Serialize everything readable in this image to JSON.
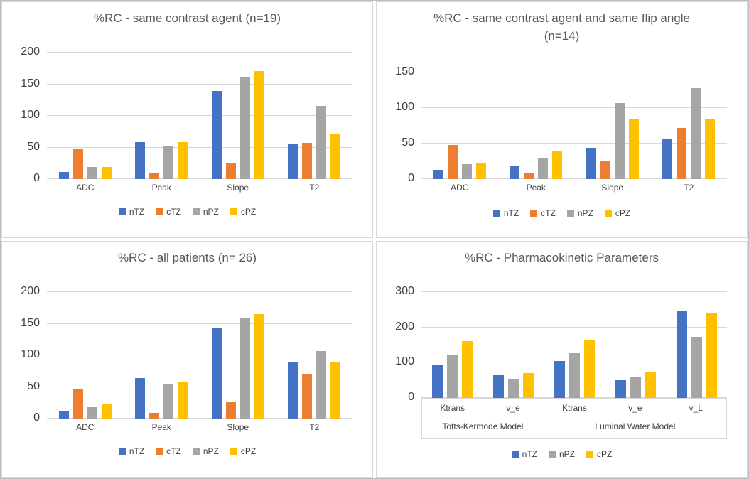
{
  "figure": {
    "background": "#ffffff",
    "outer_border_color": "#bdbdbd",
    "panel_border_color": "#d9d9d9"
  },
  "colors": {
    "nTZ": "#4472c4",
    "cTZ": "#ed7d31",
    "nPZ": "#a5a5a5",
    "cPZ": "#ffc000",
    "title_text": "#595959",
    "axis_text": "#404040",
    "gridline": "#d9d9d9"
  },
  "chart_data": [
    {
      "type": "bar",
      "title": "%RC - same contrast agent (n=19)",
      "title_lines": [
        "%RC - same contrast agent (n=19)"
      ],
      "categories": [
        "ADC",
        "Peak",
        "Slope",
        "T2"
      ],
      "series": [
        {
          "name": "nTZ",
          "color": "#4472c4",
          "values": [
            11,
            59,
            139,
            55
          ]
        },
        {
          "name": "cTZ",
          "color": "#ed7d31",
          "values": [
            48,
            9,
            26,
            57
          ]
        },
        {
          "name": "nPZ",
          "color": "#a5a5a5",
          "values": [
            19,
            53,
            161,
            116
          ]
        },
        {
          "name": "cPZ",
          "color": "#ffc000",
          "values": [
            19,
            58,
            171,
            72
          ]
        }
      ],
      "ylim": [
        0,
        200
      ],
      "yticks": [
        0,
        50,
        100,
        150,
        200
      ],
      "grid": true,
      "legend_position": "bottom",
      "legend": [
        "nTZ",
        "cTZ",
        "nPZ",
        "cPZ"
      ]
    },
    {
      "type": "bar",
      "title": "%RC  - same contrast agent and same flip angle (n=14)",
      "title_lines": [
        "%RC  - same contrast agent and same flip angle",
        "(n=14)"
      ],
      "categories": [
        "ADC",
        "Peak",
        "Slope",
        "T2"
      ],
      "series": [
        {
          "name": "nTZ",
          "color": "#4472c4",
          "values": [
            13,
            19,
            44,
            56
          ]
        },
        {
          "name": "cTZ",
          "color": "#ed7d31",
          "values": [
            48,
            9,
            26,
            72
          ]
        },
        {
          "name": "nPZ",
          "color": "#a5a5a5",
          "values": [
            21,
            29,
            107,
            128
          ]
        },
        {
          "name": "cPZ",
          "color": "#ffc000",
          "values": [
            23,
            39,
            85,
            84
          ]
        }
      ],
      "ylim": [
        0,
        150
      ],
      "yticks": [
        0,
        50,
        100,
        150
      ],
      "grid": true,
      "legend_position": "bottom",
      "legend": [
        "nTZ",
        "cTZ",
        "nPZ",
        "cPZ"
      ]
    },
    {
      "type": "bar",
      "title": "%RC - all patients (n= 26)",
      "title_lines": [
        "%RC - all patients (n= 26)"
      ],
      "categories": [
        "ADC",
        "Peak",
        "Slope",
        "T2"
      ],
      "series": [
        {
          "name": "nTZ",
          "color": "#4472c4",
          "values": [
            12,
            64,
            144,
            90
          ]
        },
        {
          "name": "cTZ",
          "color": "#ed7d31",
          "values": [
            47,
            9,
            26,
            71
          ]
        },
        {
          "name": "nPZ",
          "color": "#a5a5a5",
          "values": [
            18,
            54,
            158,
            107
          ]
        },
        {
          "name": "cPZ",
          "color": "#ffc000",
          "values": [
            22,
            57,
            165,
            89
          ]
        }
      ],
      "ylim": [
        0,
        200
      ],
      "yticks": [
        0,
        50,
        100,
        150,
        200
      ],
      "grid": true,
      "legend_position": "bottom",
      "legend": [
        "nTZ",
        "cTZ",
        "nPZ",
        "cPZ"
      ]
    },
    {
      "type": "bar",
      "title": "%RC - Pharmacokinetic Parameters",
      "title_lines": [
        "%RC - Pharmacokinetic Parameters"
      ],
      "categories": [
        "Ktrans",
        "v_e",
        "Ktrans",
        "v_e",
        "v_L"
      ],
      "category_groups": [
        {
          "label": "Tofts-Kermode Model",
          "categories": [
            "Ktrans",
            "v_e"
          ]
        },
        {
          "label": "Luminal Water Model",
          "categories": [
            "Ktrans",
            "v_e",
            "v_L"
          ]
        }
      ],
      "series": [
        {
          "name": "nTZ",
          "color": "#4472c4",
          "values": [
            92,
            64,
            105,
            51,
            248
          ]
        },
        {
          "name": "nPZ",
          "color": "#a5a5a5",
          "values": [
            121,
            55,
            126,
            60,
            173
          ]
        },
        {
          "name": "cPZ",
          "color": "#ffc000",
          "values": [
            162,
            70,
            165,
            73,
            241
          ]
        }
      ],
      "ylim": [
        0,
        300
      ],
      "yticks": [
        0,
        100,
        200,
        300
      ],
      "grid": true,
      "legend_position": "bottom",
      "legend": [
        "nTZ",
        "nPZ",
        "cPZ"
      ]
    }
  ]
}
